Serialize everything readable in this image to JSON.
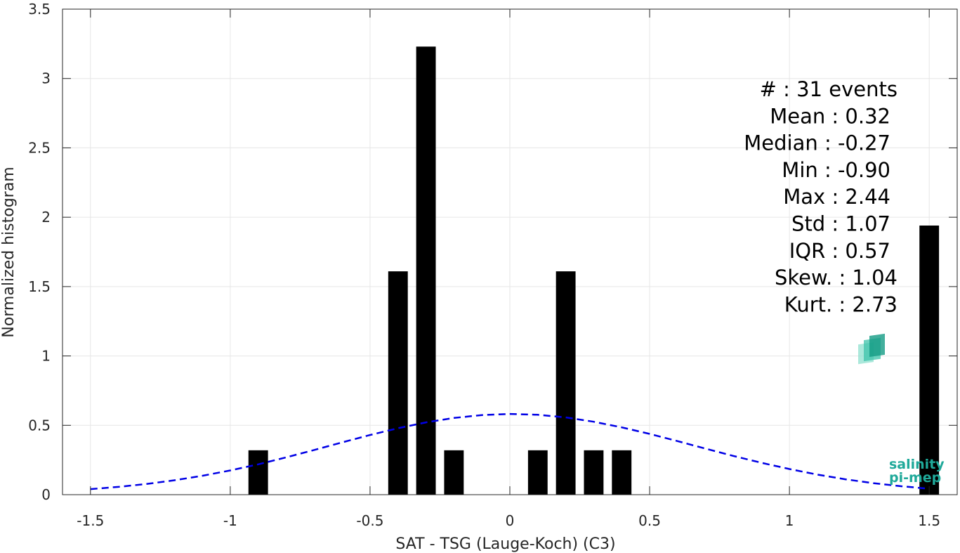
{
  "chart_data": {
    "type": "bar",
    "xlabel": "SAT - TSG (Lauge-Koch) (C3)",
    "ylabel": "Normalized histogram",
    "xlim": [
      -1.6,
      1.6
    ],
    "ylim": [
      0,
      3.5
    ],
    "grid": true,
    "xticks": [
      -1.5,
      -1,
      -0.5,
      0,
      0.5,
      1,
      1.5
    ],
    "xtick_labels": [
      "-1.5",
      "-1",
      "-0.5",
      "0",
      "0.5",
      "1",
      "1.5"
    ],
    "yticks": [
      0,
      0.5,
      1,
      1.5,
      2,
      2.5,
      3,
      3.5
    ],
    "ytick_labels": [
      "0",
      "0.5",
      "1",
      "1.5",
      "2",
      "2.5",
      "3",
      "3.5"
    ],
    "bar_width": 0.07,
    "bars": [
      {
        "x": -0.9,
        "value": 0.32
      },
      {
        "x": -0.4,
        "value": 1.61
      },
      {
        "x": -0.3,
        "value": 3.23
      },
      {
        "x": -0.2,
        "value": 0.32
      },
      {
        "x": 0.1,
        "value": 0.32
      },
      {
        "x": 0.2,
        "value": 1.61
      },
      {
        "x": 0.3,
        "value": 0.32
      },
      {
        "x": 0.4,
        "value": 0.32
      },
      {
        "x": 1.5,
        "value": 1.94
      }
    ],
    "fit_curve": {
      "style": "dashed",
      "color": "#0000e6",
      "x": [
        -1.5,
        -1.4,
        -1.3,
        -1.2,
        -1.1,
        -1.0,
        -0.9,
        -0.8,
        -0.7,
        -0.6,
        -0.5,
        -0.4,
        -0.3,
        -0.2,
        -0.1,
        0.0,
        0.1,
        0.2,
        0.3,
        0.4,
        0.5,
        0.6,
        0.7,
        0.8,
        0.9,
        1.0,
        1.1,
        1.2,
        1.3,
        1.4,
        1.5
      ],
      "y": [
        0.04,
        0.056,
        0.077,
        0.104,
        0.136,
        0.175,
        0.219,
        0.269,
        0.322,
        0.377,
        0.43,
        0.479,
        0.521,
        0.553,
        0.574,
        0.582,
        0.576,
        0.557,
        0.526,
        0.485,
        0.438,
        0.386,
        0.332,
        0.279,
        0.23,
        0.185,
        0.145,
        0.111,
        0.083,
        0.061,
        0.043
      ]
    },
    "annotations": [
      "#  : 31 events",
      "Mean : 0.32",
      "Median : -0.27",
      "Min : -0.90",
      "Max : 2.44",
      "Std : 1.07",
      "IQR : 0.57",
      "Skew. : 1.04",
      "Kurt. : 2.73"
    ],
    "colors": {
      "bars": "#000000",
      "fit": "#0000e6",
      "grid": "#e6e6e6",
      "axes": "#262626"
    }
  },
  "logo": {
    "line1": "salinity",
    "line2": "pi-mep"
  }
}
